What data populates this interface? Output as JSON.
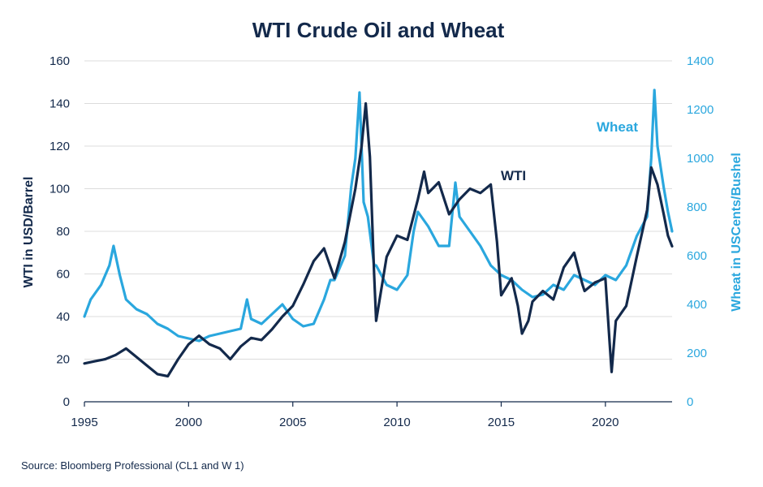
{
  "chart_data": {
    "type": "line",
    "title": "WTI Crude Oil and Wheat",
    "ylabel_left": "WTI in USD/Barrel",
    "ylabel_right": "Wheat in USCents/Bushel",
    "source": "Source: Bloomberg Professional (CL1 and W 1)",
    "x_ticks": [
      "1995",
      "2000",
      "2005",
      "2010",
      "2015",
      "2020"
    ],
    "y_left_ticks": [
      "0",
      "20",
      "40",
      "60",
      "80",
      "100",
      "120",
      "140",
      "160"
    ],
    "y_right_ticks": [
      "0",
      "200",
      "400",
      "600",
      "800",
      "1000",
      "1200",
      "1400"
    ],
    "xlim": [
      1995,
      2023.2
    ],
    "ylim_left": [
      0,
      160
    ],
    "ylim_right": [
      0,
      1400
    ],
    "grid": "horizontal",
    "colors": {
      "wti": "#13294b",
      "wheat": "#2aa7de",
      "grid": "#dcdcdc",
      "axis": "#13294b"
    },
    "annotations": [
      {
        "text": "WTI",
        "series": "wti"
      },
      {
        "text": "Wheat",
        "series": "wheat"
      }
    ],
    "series": [
      {
        "name": "WTI",
        "axis": "left",
        "x": [
          1995.0,
          1995.5,
          1996.0,
          1996.5,
          1997.0,
          1997.5,
          1998.0,
          1998.5,
          1999.0,
          1999.5,
          2000.0,
          2000.5,
          2001.0,
          2001.5,
          2002.0,
          2002.5,
          2003.0,
          2003.5,
          2004.0,
          2004.5,
          2005.0,
          2005.5,
          2006.0,
          2006.5,
          2007.0,
          2007.5,
          2008.0,
          2008.3,
          2008.5,
          2008.7,
          2008.9,
          2009.0,
          2009.5,
          2010.0,
          2010.5,
          2011.0,
          2011.3,
          2011.5,
          2012.0,
          2012.5,
          2013.0,
          2013.5,
          2014.0,
          2014.5,
          2014.8,
          2015.0,
          2015.5,
          2015.8,
          2016.0,
          2016.3,
          2016.5,
          2017.0,
          2017.5,
          2018.0,
          2018.5,
          2018.9,
          2019.0,
          2019.5,
          2020.0,
          2020.2,
          2020.3,
          2020.5,
          2021.0,
          2021.5,
          2022.0,
          2022.2,
          2022.5,
          2022.8,
          2023.0,
          2023.2
        ],
        "y": [
          18,
          19,
          20,
          22,
          25,
          21,
          17,
          13,
          12,
          20,
          27,
          31,
          27,
          25,
          20,
          26,
          30,
          29,
          34,
          40,
          45,
          55,
          66,
          72,
          58,
          75,
          100,
          120,
          140,
          115,
          60,
          38,
          68,
          78,
          76,
          95,
          108,
          98,
          103,
          88,
          95,
          100,
          98,
          102,
          75,
          50,
          58,
          45,
          32,
          38,
          47,
          52,
          48,
          63,
          70,
          55,
          52,
          56,
          58,
          28,
          14,
          38,
          45,
          68,
          90,
          110,
          102,
          88,
          78,
          73
        ]
      },
      {
        "name": "Wheat",
        "axis": "right",
        "x": [
          1995.0,
          1995.3,
          1995.8,
          1996.2,
          1996.4,
          1996.7,
          1997.0,
          1997.5,
          1998.0,
          1998.5,
          1999.0,
          1999.5,
          2000.0,
          2000.5,
          2001.0,
          2001.5,
          2002.0,
          2002.5,
          2002.8,
          2003.0,
          2003.5,
          2004.0,
          2004.5,
          2005.0,
          2005.5,
          2006.0,
          2006.5,
          2006.8,
          2007.0,
          2007.5,
          2007.8,
          2008.0,
          2008.2,
          2008.4,
          2008.6,
          2008.9,
          2009.0,
          2009.5,
          2010.0,
          2010.5,
          2010.8,
          2011.0,
          2011.5,
          2012.0,
          2012.5,
          2012.8,
          2013.0,
          2013.5,
          2014.0,
          2014.5,
          2015.0,
          2015.5,
          2016.0,
          2016.5,
          2017.0,
          2017.5,
          2018.0,
          2018.5,
          2019.0,
          2019.5,
          2020.0,
          2020.5,
          2021.0,
          2021.5,
          2022.0,
          2022.2,
          2022.35,
          2022.5,
          2022.8,
          2023.0,
          2023.2
        ],
        "y": [
          350,
          420,
          480,
          560,
          640,
          520,
          420,
          380,
          360,
          320,
          300,
          270,
          260,
          250,
          270,
          280,
          290,
          300,
          420,
          340,
          320,
          360,
          400,
          340,
          310,
          320,
          420,
          500,
          500,
          600,
          880,
          1000,
          1270,
          820,
          760,
          560,
          560,
          480,
          460,
          520,
          700,
          780,
          720,
          640,
          640,
          900,
          760,
          700,
          640,
          560,
          520,
          500,
          460,
          430,
          440,
          480,
          460,
          520,
          500,
          480,
          520,
          500,
          560,
          680,
          760,
          1000,
          1280,
          1050,
          880,
          780,
          700
        ]
      }
    ]
  }
}
